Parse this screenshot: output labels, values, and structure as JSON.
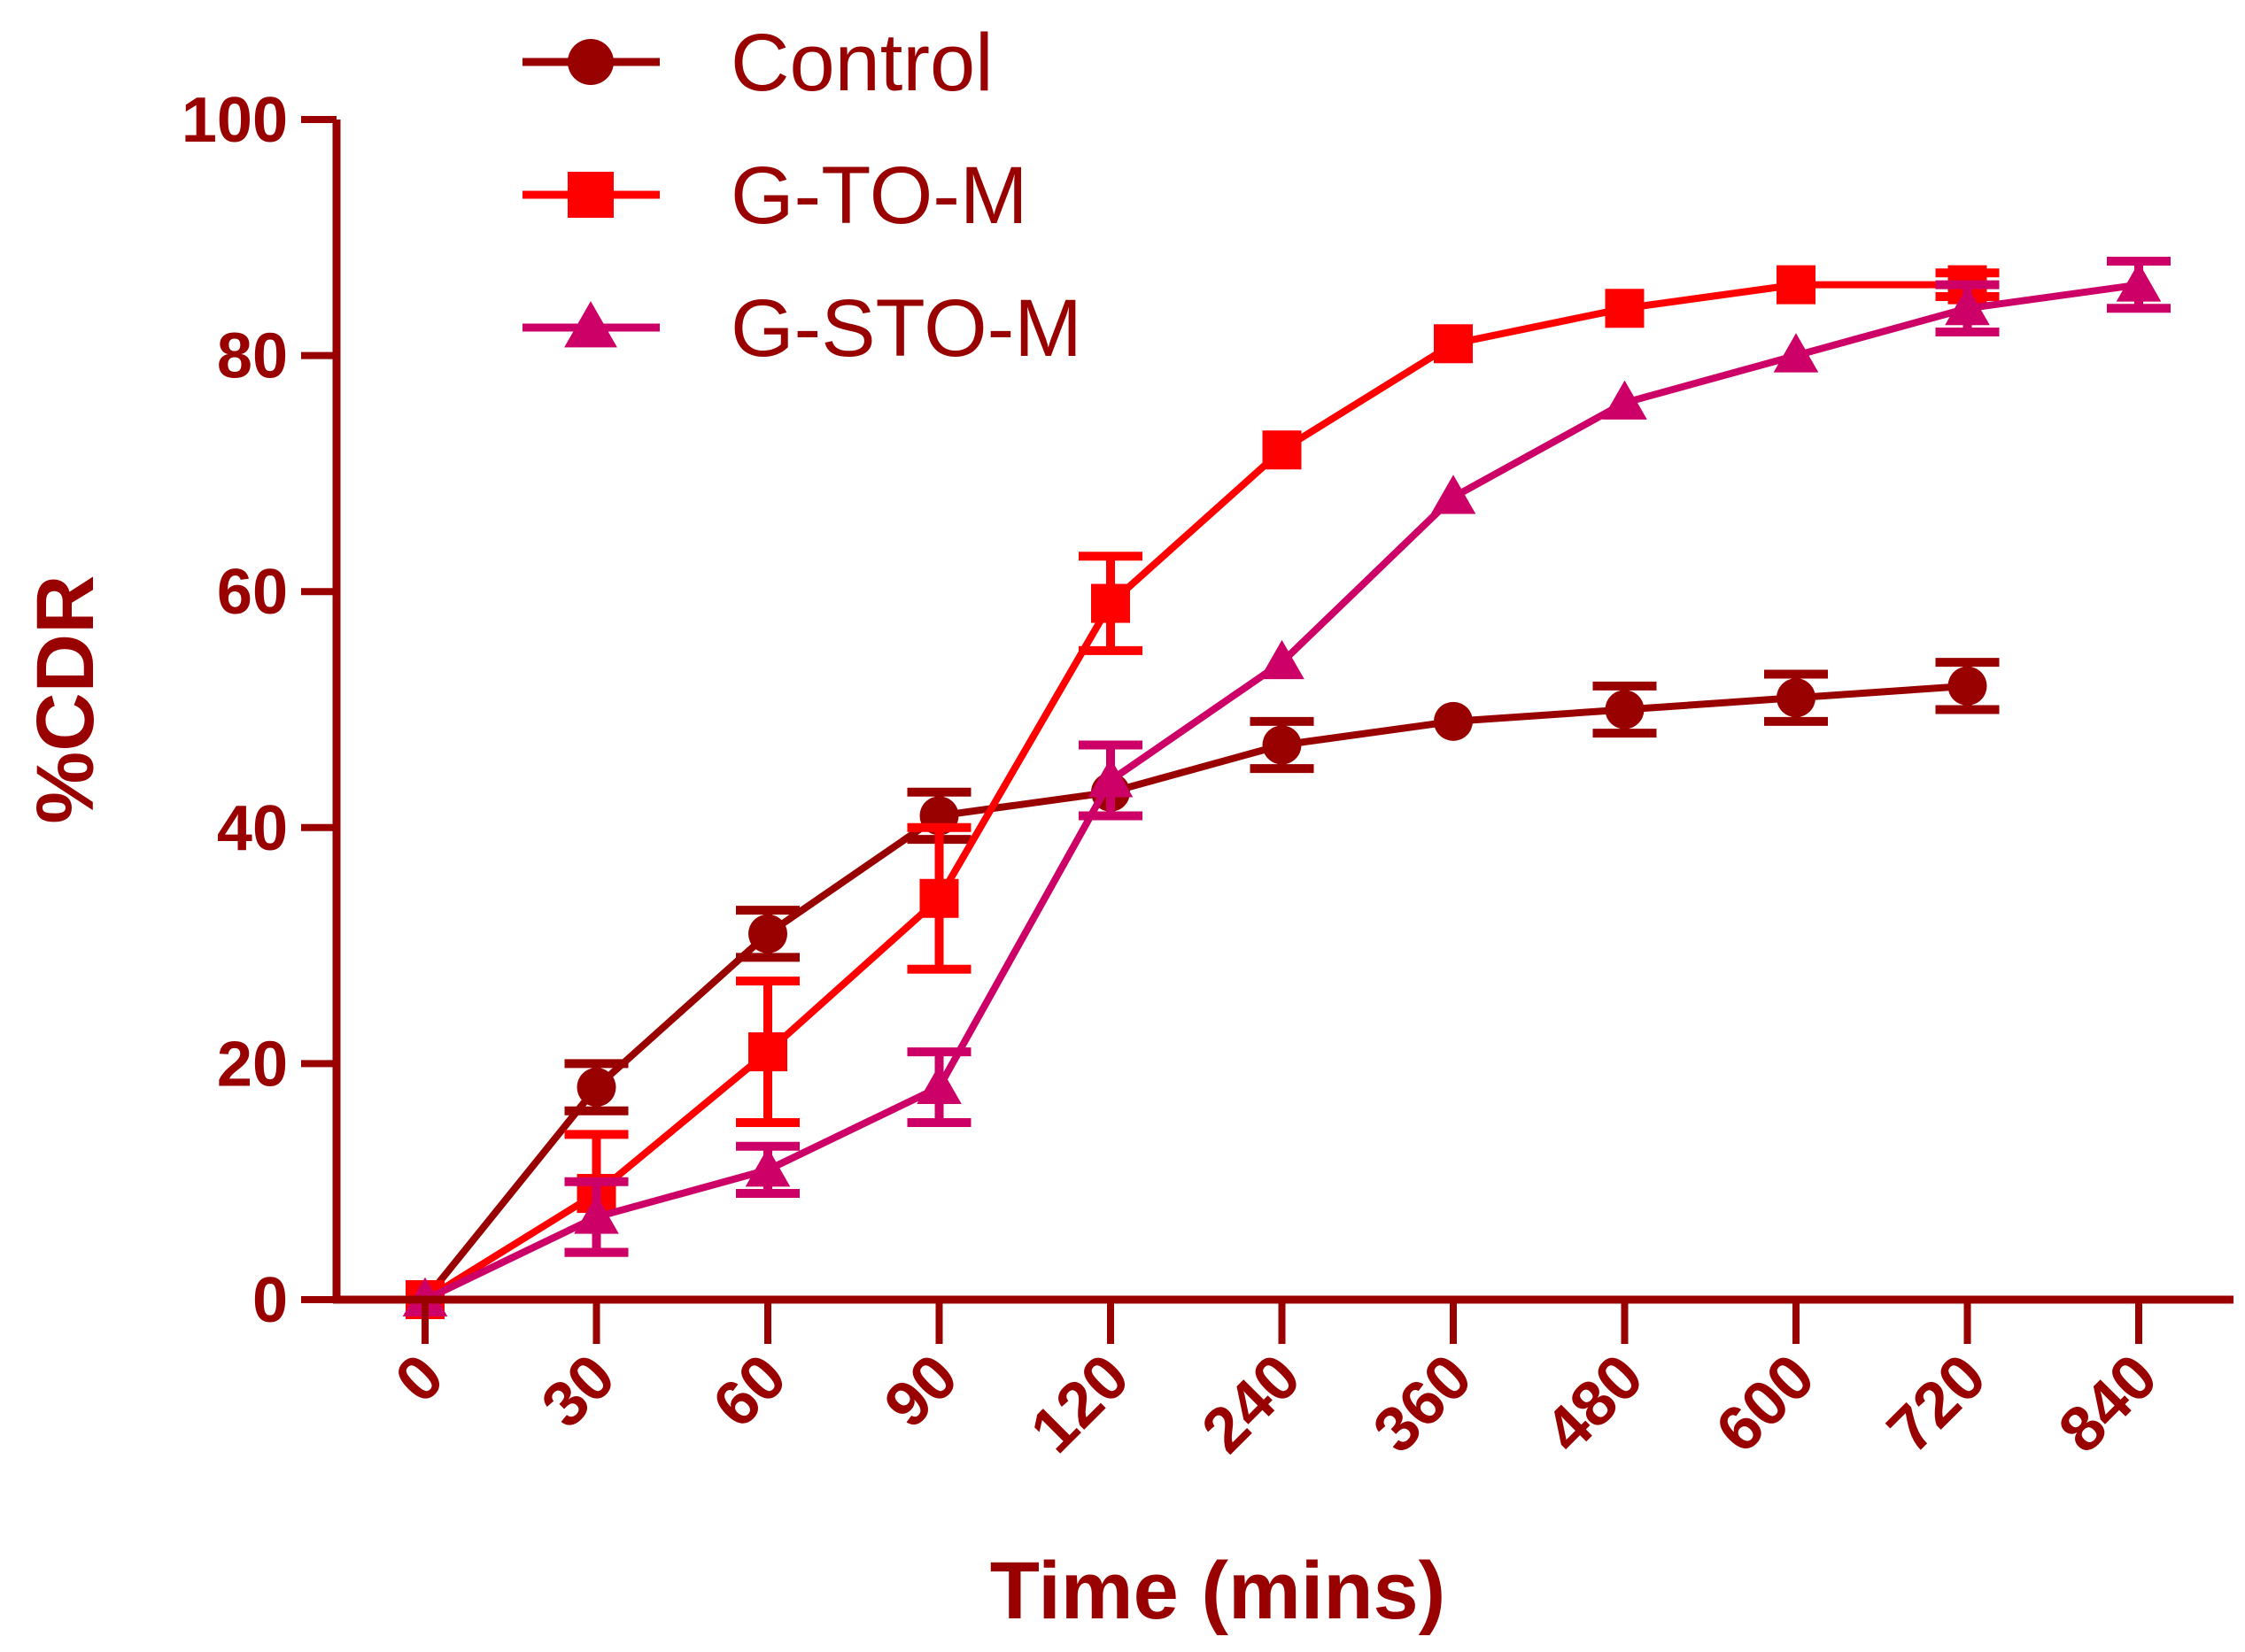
{
  "chart_data": {
    "type": "line",
    "title": "",
    "xlabel": "Time (mins)",
    "ylabel": "%CDR",
    "categories": [
      "0",
      "30",
      "60",
      "90",
      "120",
      "240",
      "360",
      "480",
      "600",
      "720",
      "840"
    ],
    "ylim": [
      0,
      100
    ],
    "yticks": [
      0,
      20,
      40,
      60,
      80,
      100
    ],
    "legend_position": "top",
    "axis_color": "#990000",
    "series": [
      {
        "name": "Control",
        "color": "#990000",
        "marker": "circle",
        "values": [
          0,
          18,
          31,
          41,
          43,
          47,
          49,
          50,
          51,
          52,
          null
        ],
        "errors": [
          0,
          2,
          2,
          2,
          0,
          2,
          0,
          2,
          2,
          2,
          null
        ]
      },
      {
        "name": "G-TO-M",
        "color": "#ff0000",
        "marker": "square",
        "values": [
          0,
          9,
          21,
          34,
          59,
          72,
          81,
          84,
          86,
          86,
          null
        ],
        "errors": [
          0,
          5,
          6,
          6,
          4,
          0,
          0,
          0,
          0,
          1,
          null
        ]
      },
      {
        "name": "G-STO-M",
        "color": "#cc0066",
        "marker": "triangle",
        "values": [
          0,
          7,
          11,
          18,
          44,
          54,
          68,
          76,
          80,
          84,
          86
        ],
        "errors": [
          0,
          3,
          2,
          3,
          3,
          0,
          0,
          0,
          0,
          2,
          2
        ]
      }
    ]
  }
}
